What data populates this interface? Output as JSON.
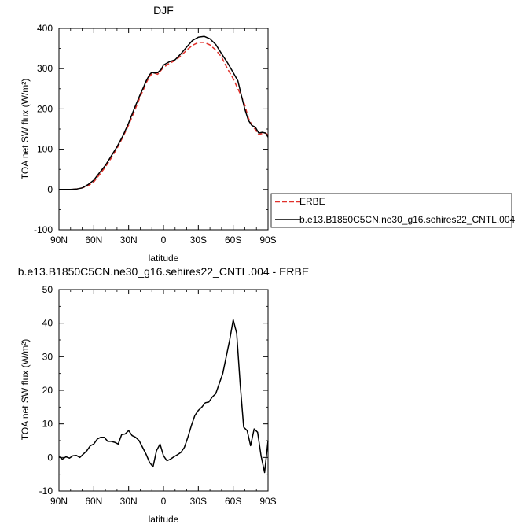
{
  "chart_data": [
    {
      "type": "line",
      "title": "DJF",
      "xlabel": "latitude",
      "ylabel": "TOA net SW flux (W/m²)",
      "x_tick_labels": [
        "90N",
        "60N",
        "30N",
        "0",
        "30S",
        "60S",
        "90S"
      ],
      "xlim": [
        90,
        -90
      ],
      "ylim": [
        -100,
        400
      ],
      "y_ticks": [
        -100,
        0,
        100,
        200,
        300,
        400
      ],
      "legend_position": "right",
      "series": [
        {
          "name": "ERBE",
          "color": "#e0302a",
          "dash": "dashed",
          "x": [
            90,
            85,
            80,
            75,
            70,
            65,
            60,
            55,
            50,
            45,
            40,
            35,
            30,
            25,
            20,
            17,
            15,
            12,
            10,
            8,
            5,
            2,
            0,
            -5,
            -10,
            -15,
            -20,
            -25,
            -30,
            -35,
            -40,
            -45,
            -50,
            -55,
            -60,
            -64,
            -67,
            -70,
            -73,
            -76,
            -79,
            -82,
            -85,
            -88,
            -90
          ],
          "values": [
            0,
            0,
            0,
            1,
            4,
            9,
            19,
            37,
            56,
            78,
            102,
            130,
            160,
            195,
            230,
            250,
            264,
            280,
            287,
            289,
            286,
            296,
            303,
            313,
            320,
            332,
            346,
            358,
            365,
            365,
            359,
            346,
            329,
            300,
            275,
            250,
            232,
            210,
            178,
            160,
            149,
            136,
            139,
            140,
            135
          ]
        },
        {
          "name": "b.e13.B1850C5CN.ne30_g16.sehires22_CNTL.004",
          "color": "#000000",
          "dash": "solid",
          "x": [
            90,
            85,
            80,
            75,
            70,
            65,
            60,
            55,
            50,
            45,
            40,
            35,
            30,
            25,
            20,
            17,
            15,
            12,
            10,
            8,
            5,
            2,
            0,
            -5,
            -10,
            -15,
            -20,
            -25,
            -30,
            -35,
            -40,
            -45,
            -50,
            -55,
            -60,
            -64,
            -67,
            -70,
            -73,
            -76,
            -79,
            -82,
            -85,
            -88,
            -90
          ],
          "values": [
            0,
            0,
            0,
            1,
            4,
            12,
            23,
            42,
            60,
            83,
            106,
            133,
            165,
            202,
            236,
            255,
            269,
            285,
            291,
            289,
            290,
            298,
            309,
            317,
            322,
            337,
            354,
            370,
            378,
            380,
            374,
            360,
            337,
            315,
            290,
            270,
            234,
            200,
            172,
            159,
            155,
            140,
            142,
            140,
            130
          ]
        }
      ]
    },
    {
      "type": "line",
      "title": "b.e13.B1850C5CN.ne30_g16.sehires22_CNTL.004 - ERBE",
      "xlabel": "latitude",
      "ylabel": "TOA net SW flux (W/m²)",
      "x_tick_labels": [
        "90N",
        "60N",
        "30N",
        "0",
        "30S",
        "60S",
        "90S"
      ],
      "xlim": [
        90,
        -90
      ],
      "ylim": [
        -10,
        50
      ],
      "y_ticks": [
        -10,
        0,
        10,
        20,
        30,
        40,
        50
      ],
      "series": [
        {
          "color": "#000000",
          "dash": "solid",
          "x": [
            90,
            87,
            84,
            81,
            78,
            75,
            72,
            69,
            66,
            63,
            60,
            57,
            54,
            51,
            48,
            45,
            42,
            39,
            36,
            33,
            30,
            27,
            24,
            21,
            18,
            15,
            12,
            9,
            6,
            3,
            0,
            -3,
            -6,
            -9,
            -12,
            -15,
            -18,
            -21,
            -24,
            -27,
            -30,
            -33,
            -36,
            -39,
            -42,
            -45,
            -48,
            -51,
            -54,
            -57,
            -60,
            -63,
            -66,
            -69,
            -72,
            -75,
            -78,
            -81,
            -84,
            -87,
            -90
          ],
          "values": [
            0.3,
            -0.5,
            0.2,
            -0.2,
            0.5,
            0.6,
            0.0,
            1.0,
            2.0,
            3.5,
            4.0,
            5.5,
            6.0,
            6.0,
            4.8,
            4.8,
            4.5,
            4.0,
            6.8,
            7.0,
            8.0,
            6.5,
            6.0,
            5.0,
            3.0,
            1.0,
            -1.5,
            -2.8,
            2.0,
            4.0,
            0.5,
            -1.0,
            -0.5,
            0.2,
            0.8,
            1.5,
            3.0,
            6.0,
            9.5,
            12.5,
            14.0,
            15.0,
            16.3,
            16.5,
            18.0,
            19.0,
            22.0,
            25.0,
            30.0,
            35.0,
            41.0,
            37.0,
            22.0,
            9.0,
            8.0,
            3.5,
            8.5,
            7.5,
            0.5,
            -4.5,
            5.0
          ]
        }
      ]
    }
  ]
}
